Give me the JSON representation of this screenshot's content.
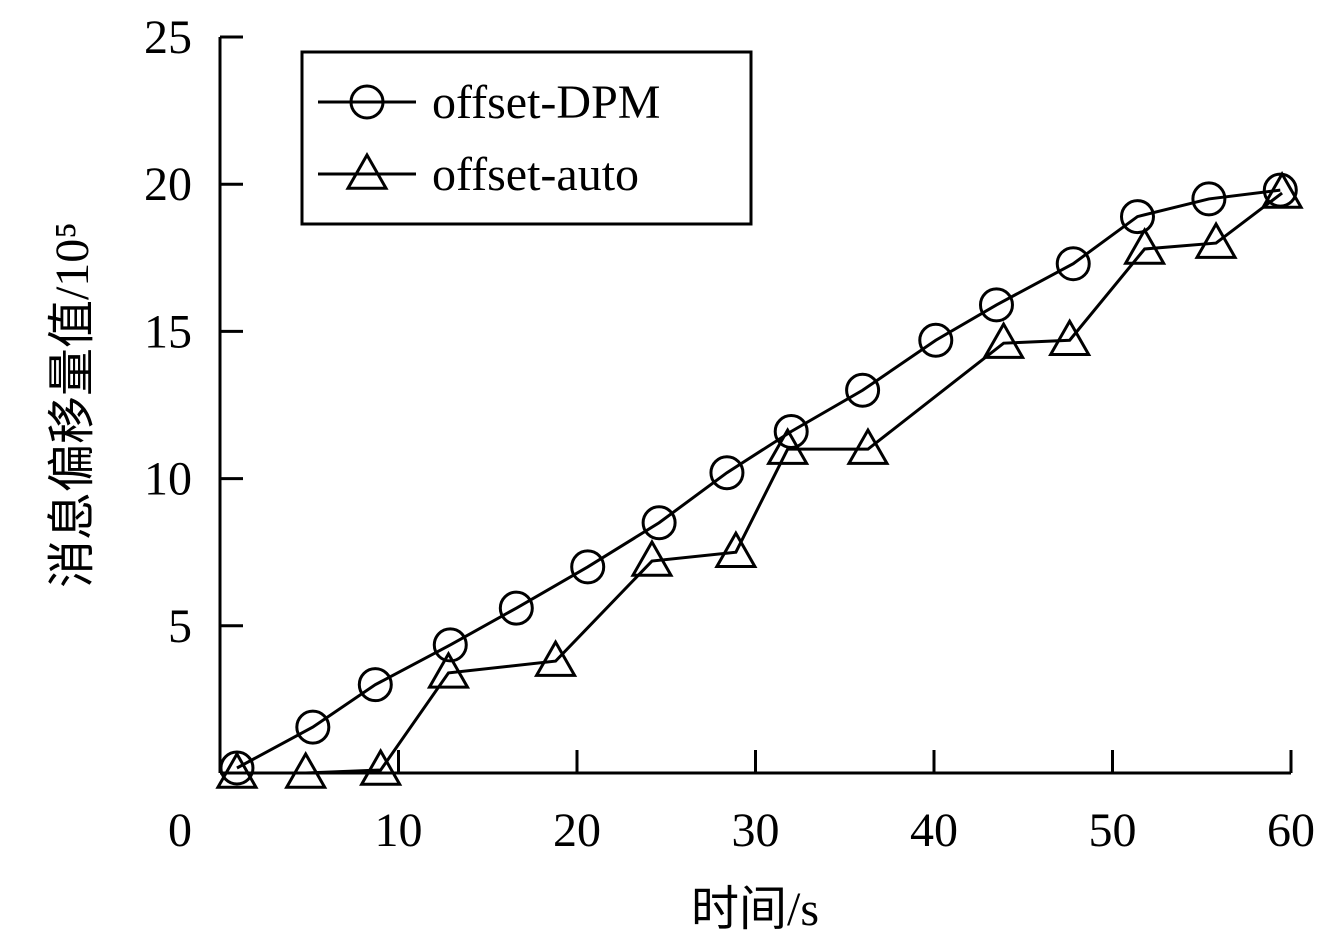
{
  "chart_data": {
    "type": "line",
    "x_label": "时间/s",
    "y_label": "消息偏移量值/10⁵",
    "xlim": [
      0,
      60
    ],
    "xticks": [
      0,
      10,
      20,
      30,
      40,
      50,
      60
    ],
    "ylim": [
      0,
      25
    ],
    "yticks": [
      5,
      10,
      15,
      20,
      25
    ],
    "legend": "upper left",
    "series": [
      {
        "name": "offset-DPM",
        "color": "#000000",
        "marker": "circle",
        "x": [
          0.95,
          5.2,
          8.7,
          12.9,
          16.6,
          20.6,
          24.6,
          28.4,
          32.0,
          36.0,
          40.1,
          43.5,
          47.8,
          51.4,
          55.4,
          59.4
        ],
        "values": [
          0.17,
          1.56,
          3.0,
          4.35,
          5.6,
          7.0,
          8.5,
          10.2,
          11.6,
          13.0,
          14.7,
          15.9,
          17.3,
          18.9,
          19.5,
          19.8
        ]
      },
      {
        "name": "offset-auto",
        "color": "#000000",
        "marker": "triangle",
        "x": [
          0.95,
          4.8,
          9.0,
          12.8,
          18.8,
          24.2,
          28.9,
          31.8,
          36.3,
          43.9,
          47.6,
          51.8,
          55.8,
          59.5
        ],
        "values": [
          0,
          0,
          0.1,
          3.4,
          3.8,
          7.2,
          7.5,
          11.0,
          11.0,
          14.6,
          14.7,
          17.8,
          18.0,
          19.7
        ]
      }
    ]
  }
}
